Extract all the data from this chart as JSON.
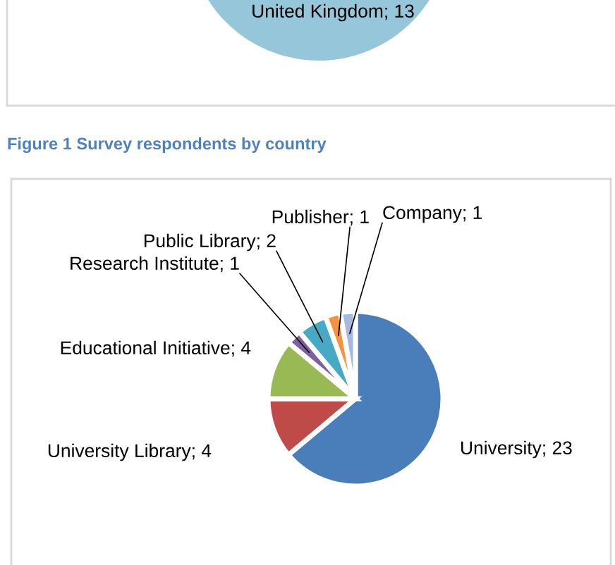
{
  "chart_data": [
    {
      "type": "pie",
      "categories": [
        "United Kingdom; 13"
      ],
      "values": [
        13
      ],
      "colors": [
        "#96c6d9"
      ],
      "annotations": [
        "Figure 1 Survey respondents by country"
      ]
    },
    {
      "type": "pie",
      "categories": [
        "University; 23",
        "University Library; 4",
        "Educational Initiative; 4",
        "Research Institute; 1",
        "Public Library; 2",
        "Publisher; 1",
        "Company; 1"
      ],
      "values": [
        23,
        4,
        4,
        1,
        2,
        1,
        1
      ],
      "colors": [
        "#4a7ebb",
        "#be4b48",
        "#98b954",
        "#7d60a0",
        "#46aac5",
        "#f69240",
        "#a5b9df"
      ]
    }
  ]
}
